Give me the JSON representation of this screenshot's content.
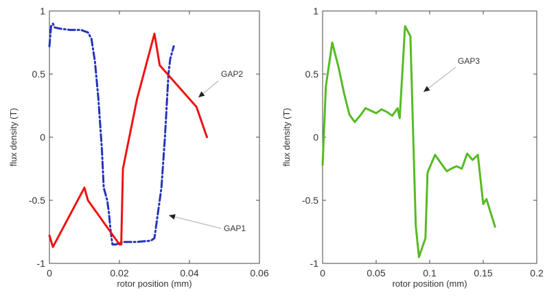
{
  "chart_data": [
    {
      "type": "line",
      "xlabel": "rotor position (mm)",
      "ylabel": "flux density (T)",
      "xlim": [
        0,
        0.06
      ],
      "ylim": [
        -1,
        1
      ],
      "xticks": [
        0,
        0.02,
        0.04,
        0.06
      ],
      "xtick_labels": [
        "0",
        "0.02",
        "0.04",
        "0.06"
      ],
      "yticks": [
        1,
        0.5,
        0,
        -0.5,
        -1
      ],
      "ytick_labels": [
        "1",
        "0.5",
        "0",
        "-0.5",
        "-1"
      ],
      "grid": false,
      "series": [
        {
          "color": "#2233bb",
          "style": "dashdot",
          "points": [
            [
              0,
              0.72
            ],
            [
              0.0005,
              0.88
            ],
            [
              0.001,
              0.9
            ],
            [
              0.0015,
              0.87
            ],
            [
              0.003,
              0.86
            ],
            [
              0.006,
              0.85
            ],
            [
              0.009,
              0.85
            ],
            [
              0.011,
              0.83
            ],
            [
              0.012,
              0.78
            ],
            [
              0.013,
              0.6
            ],
            [
              0.014,
              0.3
            ],
            [
              0.015,
              -0.1
            ],
            [
              0.0155,
              -0.4
            ],
            [
              0.0165,
              -0.5
            ],
            [
              0.017,
              -0.6
            ],
            [
              0.0175,
              -0.75
            ],
            [
              0.018,
              -0.85
            ],
            [
              0.019,
              -0.85
            ],
            [
              0.021,
              -0.83
            ],
            [
              0.025,
              -0.83
            ],
            [
              0.029,
              -0.82
            ],
            [
              0.03,
              -0.8
            ],
            [
              0.031,
              -0.6
            ],
            [
              0.032,
              -0.4
            ],
            [
              0.033,
              0.0
            ],
            [
              0.034,
              0.5
            ],
            [
              0.0345,
              0.62
            ],
            [
              0.0355,
              0.72
            ]
          ]
        },
        {
          "color": "#ee1111",
          "style": "solid",
          "points": [
            [
              0,
              -0.78
            ],
            [
              0.001,
              -0.87
            ],
            [
              0.01,
              -0.4
            ],
            [
              0.011,
              -0.5
            ],
            [
              0.02,
              -0.85
            ],
            [
              0.0205,
              -0.85
            ],
            [
              0.021,
              -0.25
            ],
            [
              0.025,
              0.3
            ],
            [
              0.03,
              0.82
            ],
            [
              0.0315,
              0.57
            ],
            [
              0.035,
              0.46
            ],
            [
              0.042,
              0.24
            ],
            [
              0.045,
              0.0
            ]
          ]
        }
      ],
      "annotations": [
        {
          "text": "GAP2",
          "at": [
            0.042,
            0.32
          ]
        },
        {
          "text": "GAP1",
          "at": [
            0.034,
            -0.63
          ]
        }
      ]
    },
    {
      "type": "line",
      "xlabel": "rotor position (mm)",
      "ylabel": "flux density (T)",
      "xlim": [
        0,
        0.2
      ],
      "ylim": [
        -1,
        1
      ],
      "xticks": [
        0,
        0.05,
        0.1,
        0.15,
        0.2
      ],
      "xtick_labels": [
        "0",
        "0.05",
        "0.1",
        "0.15",
        "0.2"
      ],
      "yticks": [
        1,
        0.5,
        0,
        -0.5,
        -1
      ],
      "ytick_labels": [
        "1",
        "0.5",
        "0",
        "-0.5",
        "-1"
      ],
      "grid": false,
      "series": [
        {
          "color": "#55bb22",
          "style": "solid",
          "points": [
            [
              0,
              -0.22
            ],
            [
              0.003,
              0.4
            ],
            [
              0.009,
              0.75
            ],
            [
              0.015,
              0.55
            ],
            [
              0.02,
              0.35
            ],
            [
              0.025,
              0.18
            ],
            [
              0.03,
              0.12
            ],
            [
              0.035,
              0.17
            ],
            [
              0.04,
              0.23
            ],
            [
              0.045,
              0.21
            ],
            [
              0.05,
              0.19
            ],
            [
              0.055,
              0.22
            ],
            [
              0.06,
              0.2
            ],
            [
              0.065,
              0.17
            ],
            [
              0.07,
              0.23
            ],
            [
              0.072,
              0.15
            ],
            [
              0.077,
              0.88
            ],
            [
              0.082,
              0.8
            ],
            [
              0.087,
              -0.7
            ],
            [
              0.09,
              -0.95
            ],
            [
              0.096,
              -0.8
            ],
            [
              0.098,
              -0.28
            ],
            [
              0.105,
              -0.14
            ],
            [
              0.11,
              -0.2
            ],
            [
              0.116,
              -0.27
            ],
            [
              0.12,
              -0.25
            ],
            [
              0.125,
              -0.23
            ],
            [
              0.13,
              -0.25
            ],
            [
              0.135,
              -0.13
            ],
            [
              0.14,
              -0.18
            ],
            [
              0.145,
              -0.14
            ],
            [
              0.15,
              -0.53
            ],
            [
              0.153,
              -0.49
            ],
            [
              0.161,
              -0.71
            ]
          ]
        }
      ],
      "annotations": [
        {
          "text": "GAP3",
          "at": [
            0.088,
            0.4
          ]
        }
      ]
    }
  ]
}
